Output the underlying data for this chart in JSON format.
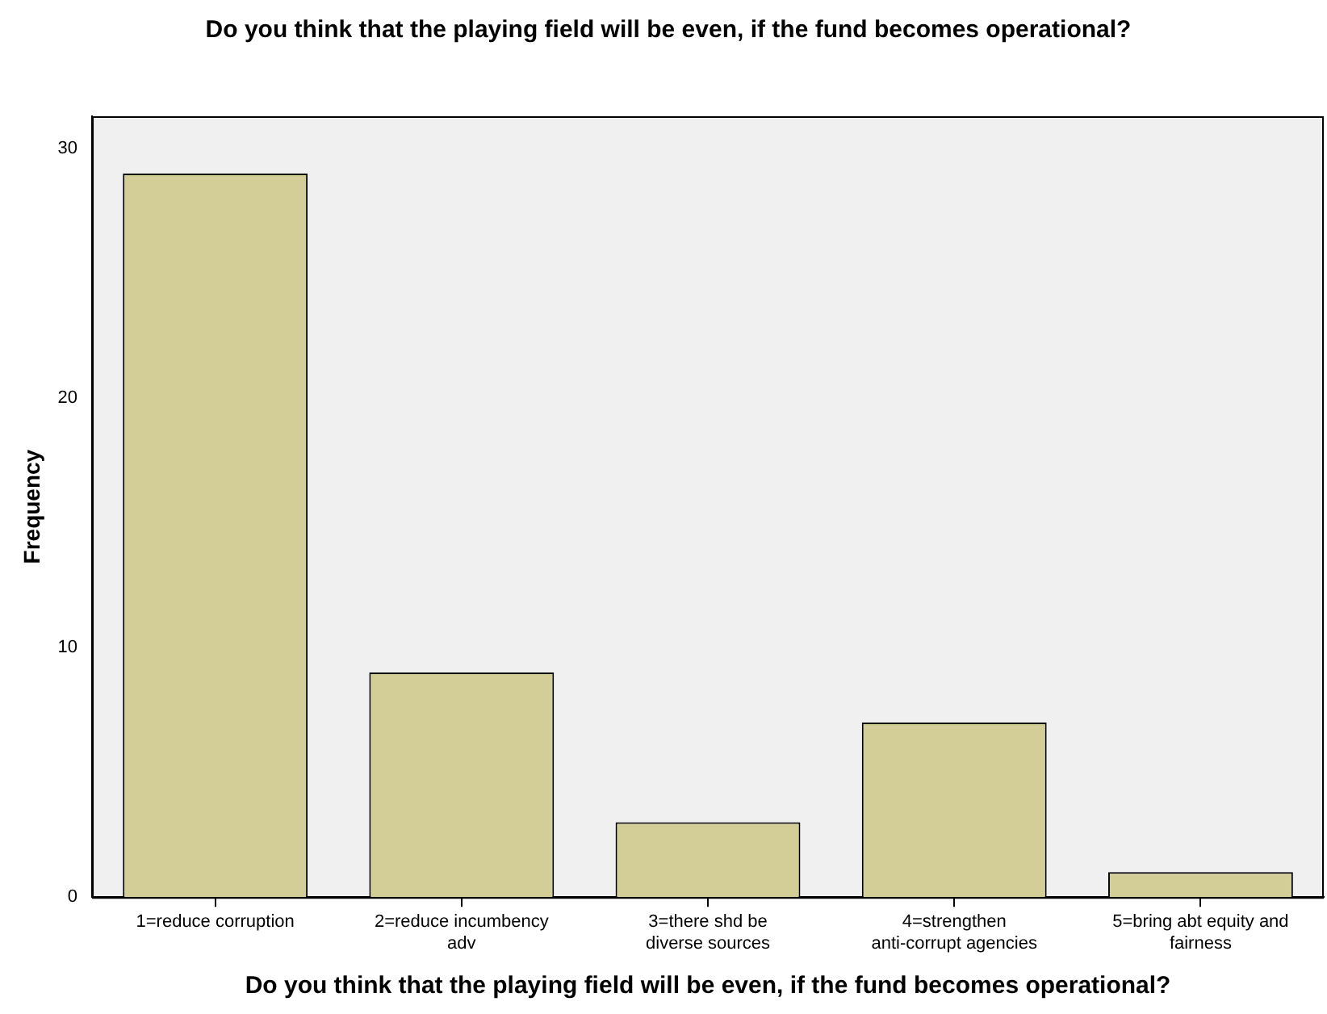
{
  "chart_data": {
    "type": "bar",
    "title": "Do you think that the playing field will be even, if the fund becomes operational?",
    "xlabel": "Do you think that the playing field will be even, if the fund becomes operational?",
    "ylabel": "Frequency",
    "categories": [
      "1=reduce corruption",
      "2=reduce incumbency adv",
      "3=there shd be diverse sources",
      "4=strengthen anti-corrupt agencies",
      "5=bring abt equity and fairness"
    ],
    "values": [
      29,
      9,
      3,
      7,
      1
    ],
    "color": "#d3ce97",
    "ylim": [
      0,
      31.3
    ],
    "yticks": [
      0,
      10,
      20,
      30
    ],
    "grid": false,
    "legend": false
  }
}
